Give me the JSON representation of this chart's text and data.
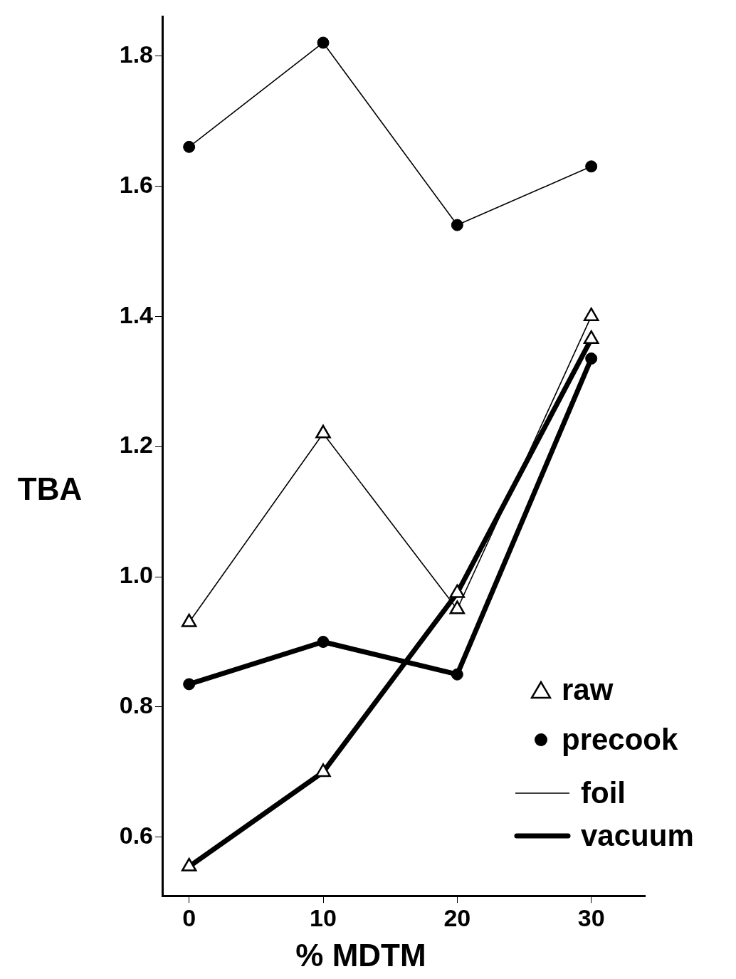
{
  "chart_data": {
    "type": "line",
    "xlabel": "% MDTM",
    "ylabel": "TBA",
    "x": [
      0,
      10,
      20,
      30
    ],
    "series": [
      {
        "color": "#000000",
        "marker": "circle",
        "values": [
          1.66,
          1.82,
          1.54,
          1.63
        ]
      },
      {
        "color": "#000000",
        "marker": "triangle",
        "values": [
          0.93,
          1.22,
          0.95,
          1.4
        ]
      },
      {
        "color": "#000000",
        "marker": "circle",
        "values": [
          0.835,
          0.9,
          0.85,
          1.335
        ]
      },
      {
        "color": "#000000",
        "marker": "triangle",
        "values": [
          0.555,
          0.7,
          0.975,
          1.365
        ]
      }
    ],
    "xlim": [
      -2,
      34
    ],
    "xticks": [
      0,
      10,
      20,
      30
    ],
    "ylim": [
      0.51,
      1.86
    ],
    "yticks": [
      {
        "value": 0.6,
        "label": "0.6"
      },
      {
        "value": 0.8,
        "label": "0.8"
      },
      {
        "value": 1,
        "label": "1.0"
      },
      {
        "value": 1.2,
        "label": "1.2"
      },
      {
        "value": 1.4,
        "label": "1.4"
      },
      {
        "value": 1.6,
        "label": "1.6"
      },
      {
        "value": 1.8,
        "label": "1.8"
      }
    ],
    "grid": false,
    "legend": false,
    "line_style": "solid",
    "annotations": [
      "raw",
      "precook",
      "foil",
      "vacuum"
    ]
  }
}
